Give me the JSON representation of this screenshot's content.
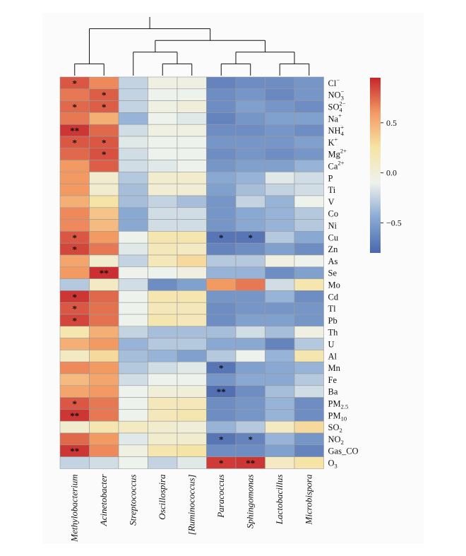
{
  "chart_data": {
    "type": "heatmap",
    "title": "",
    "columns": [
      "Methylobacterium",
      "Acinetobacter",
      "Streptococcus",
      "Oscillospira",
      "[Ruminococcus]",
      "Paracoccus",
      "Sphingomonas",
      "Lactobacillus",
      "Microbispora"
    ],
    "rows": [
      {
        "id": "Cl",
        "label": "Cl",
        "sup": "−",
        "sub": ""
      },
      {
        "id": "NO3",
        "label": "NO",
        "sub": "3",
        "sup": "−"
      },
      {
        "id": "SO4",
        "label": "SO",
        "sub": "4",
        "sup": "2−"
      },
      {
        "id": "Na",
        "label": "Na",
        "sup": "+",
        "sub": ""
      },
      {
        "id": "NH4",
        "label": "NH",
        "sub": "4",
        "sup": "+"
      },
      {
        "id": "K",
        "label": "K",
        "sup": "+",
        "sub": ""
      },
      {
        "id": "Mg",
        "label": "Mg",
        "sup": "2+",
        "sub": ""
      },
      {
        "id": "Ca",
        "label": "Ca",
        "sup": "2+",
        "sub": ""
      },
      {
        "id": "P",
        "label": "P",
        "sup": "",
        "sub": ""
      },
      {
        "id": "Ti",
        "label": "Ti",
        "sup": "",
        "sub": ""
      },
      {
        "id": "V",
        "label": "V",
        "sup": "",
        "sub": ""
      },
      {
        "id": "Co",
        "label": "Co",
        "sup": "",
        "sub": ""
      },
      {
        "id": "Ni",
        "label": "Ni",
        "sup": "",
        "sub": ""
      },
      {
        "id": "Cu",
        "label": "Cu",
        "sup": "",
        "sub": ""
      },
      {
        "id": "Zn",
        "label": "Zn",
        "sup": "",
        "sub": ""
      },
      {
        "id": "As",
        "label": "As",
        "sup": "",
        "sub": ""
      },
      {
        "id": "Se",
        "label": "Se",
        "sup": "",
        "sub": ""
      },
      {
        "id": "Mo",
        "label": "Mo",
        "sup": "",
        "sub": ""
      },
      {
        "id": "Cd",
        "label": "Cd",
        "sup": "",
        "sub": ""
      },
      {
        "id": "Tl",
        "label": "Tl",
        "sup": "",
        "sub": ""
      },
      {
        "id": "Pb",
        "label": "Pb",
        "sup": "",
        "sub": ""
      },
      {
        "id": "Th",
        "label": "Th",
        "sup": "",
        "sub": ""
      },
      {
        "id": "U",
        "label": "U",
        "sup": "",
        "sub": ""
      },
      {
        "id": "Al",
        "label": "Al",
        "sup": "",
        "sub": ""
      },
      {
        "id": "Mn",
        "label": "Mn",
        "sup": "",
        "sub": ""
      },
      {
        "id": "Fe",
        "label": "Fe",
        "sup": "",
        "sub": ""
      },
      {
        "id": "Ba",
        "label": "Ba",
        "sup": "",
        "sub": ""
      },
      {
        "id": "PM25",
        "label": "PM",
        "sub": "2.5",
        "sup": ""
      },
      {
        "id": "PM10",
        "label": "PM",
        "sub": "10",
        "sup": ""
      },
      {
        "id": "SO2",
        "label": "SO",
        "sub": "2",
        "sup": ""
      },
      {
        "id": "NO2",
        "label": "NO",
        "sub": "2",
        "sup": ""
      },
      {
        "id": "Gas_CO",
        "label": "Gas_CO",
        "sup": "",
        "sub": ""
      },
      {
        "id": "O3",
        "label": "O",
        "sub": "3",
        "sup": ""
      }
    ],
    "values": [
      [
        0.8,
        0.65,
        -0.25,
        -0.05,
        -0.05,
        -0.65,
        -0.6,
        -0.6,
        -0.55
      ],
      [
        0.7,
        0.78,
        -0.25,
        -0.1,
        -0.1,
        -0.6,
        -0.55,
        -0.62,
        -0.55
      ],
      [
        0.75,
        0.78,
        -0.25,
        -0.05,
        0.0,
        -0.6,
        -0.5,
        -0.55,
        -0.6
      ],
      [
        0.7,
        0.5,
        -0.4,
        -0.1,
        -0.15,
        -0.65,
        -0.55,
        -0.5,
        -0.5
      ],
      [
        0.9,
        0.75,
        -0.2,
        -0.05,
        -0.05,
        -0.6,
        -0.6,
        -0.55,
        -0.6
      ],
      [
        0.8,
        0.8,
        -0.15,
        -0.1,
        -0.1,
        -0.55,
        -0.55,
        -0.55,
        -0.5
      ],
      [
        0.75,
        0.82,
        -0.2,
        -0.1,
        -0.1,
        -0.6,
        -0.55,
        -0.6,
        -0.55
      ],
      [
        0.6,
        0.78,
        -0.2,
        -0.15,
        -0.1,
        -0.55,
        -0.5,
        -0.5,
        -0.4
      ],
      [
        0.6,
        0.05,
        -0.3,
        0.05,
        0.05,
        -0.45,
        -0.4,
        -0.15,
        -0.2
      ],
      [
        0.6,
        0.05,
        -0.35,
        0.02,
        0.02,
        -0.5,
        -0.35,
        -0.25,
        -0.2
      ],
      [
        0.5,
        0.25,
        -0.35,
        -0.25,
        -0.35,
        -0.55,
        -0.25,
        -0.4,
        -0.1
      ],
      [
        0.65,
        0.4,
        -0.45,
        -0.2,
        -0.2,
        -0.55,
        -0.45,
        -0.4,
        -0.3
      ],
      [
        0.65,
        0.45,
        -0.45,
        -0.2,
        -0.2,
        -0.55,
        -0.45,
        -0.4,
        -0.3
      ],
      [
        0.8,
        0.6,
        -0.1,
        0.2,
        0.2,
        -0.72,
        -0.72,
        -0.3,
        -0.45
      ],
      [
        0.85,
        0.7,
        -0.15,
        0.15,
        0.1,
        -0.65,
        -0.6,
        -0.5,
        -0.6
      ],
      [
        0.55,
        0.05,
        -0.25,
        0.15,
        0.3,
        -0.3,
        -0.3,
        -0.05,
        -0.1
      ],
      [
        0.6,
        0.92,
        -0.1,
        -0.1,
        -0.05,
        -0.4,
        -0.4,
        -0.6,
        -0.5
      ],
      [
        -0.3,
        0.1,
        -0.2,
        -0.6,
        -0.5,
        0.6,
        0.7,
        -0.2,
        0.2
      ],
      [
        0.9,
        0.75,
        -0.1,
        0.2,
        0.2,
        -0.55,
        -0.55,
        -0.4,
        -0.6
      ],
      [
        0.8,
        0.72,
        -0.1,
        0.15,
        0.15,
        -0.6,
        -0.55,
        -0.55,
        -0.55
      ],
      [
        0.85,
        0.72,
        -0.1,
        0.2,
        0.15,
        -0.6,
        -0.5,
        -0.5,
        -0.55
      ],
      [
        0.2,
        0.5,
        -0.25,
        -0.35,
        -0.35,
        -0.35,
        -0.2,
        -0.35,
        -0.05
      ],
      [
        0.5,
        0.6,
        -0.4,
        -0.3,
        -0.3,
        -0.45,
        -0.45,
        -0.65,
        -0.3
      ],
      [
        0.1,
        0.3,
        -0.35,
        -0.4,
        -0.5,
        -0.3,
        -0.1,
        -0.4,
        0.2
      ],
      [
        0.65,
        0.6,
        -0.3,
        -0.2,
        -0.15,
        -0.72,
        -0.5,
        -0.45,
        -0.4
      ],
      [
        0.45,
        0.55,
        -0.2,
        -0.1,
        -0.1,
        -0.55,
        -0.45,
        -0.45,
        -0.3
      ],
      [
        0.55,
        0.6,
        -0.1,
        0.0,
        0.0,
        -0.75,
        -0.6,
        -0.35,
        -0.2
      ],
      [
        0.8,
        0.7,
        -0.1,
        0.15,
        0.15,
        -0.6,
        -0.55,
        -0.4,
        -0.6
      ],
      [
        0.9,
        0.7,
        -0.1,
        0.15,
        0.2,
        -0.6,
        -0.55,
        -0.4,
        -0.6
      ],
      [
        0.05,
        0.2,
        0.1,
        0.05,
        0.0,
        -0.4,
        -0.3,
        0.1,
        0.3
      ],
      [
        0.75,
        0.6,
        -0.15,
        0.05,
        0.05,
        -0.72,
        -0.65,
        -0.4,
        -0.55
      ],
      [
        0.9,
        0.65,
        -0.05,
        0.2,
        0.25,
        -0.6,
        -0.6,
        -0.5,
        -0.65
      ],
      [
        -0.25,
        -0.2,
        -0.1,
        -0.25,
        -0.15,
        0.88,
        0.9,
        0.1,
        0.25
      ]
    ],
    "significance": [
      [
        "*",
        "",
        "",
        "",
        "",
        "",
        "",
        "",
        ""
      ],
      [
        "",
        "*",
        "",
        "",
        "",
        "",
        "",
        "",
        ""
      ],
      [
        "*",
        "*",
        "",
        "",
        "",
        "",
        "",
        "",
        ""
      ],
      [
        "",
        "",
        "",
        "",
        "",
        "",
        "",
        "",
        ""
      ],
      [
        "**",
        "",
        "",
        "",
        "",
        "",
        "",
        "",
        ""
      ],
      [
        "*",
        "*",
        "",
        "",
        "",
        "",
        "",
        "",
        ""
      ],
      [
        "",
        "*",
        "",
        "",
        "",
        "",
        "",
        "",
        ""
      ],
      [
        "",
        "",
        "",
        "",
        "",
        "",
        "",
        "",
        ""
      ],
      [
        "",
        "",
        "",
        "",
        "",
        "",
        "",
        "",
        ""
      ],
      [
        "",
        "",
        "",
        "",
        "",
        "",
        "",
        "",
        ""
      ],
      [
        "",
        "",
        "",
        "",
        "",
        "",
        "",
        "",
        ""
      ],
      [
        "",
        "",
        "",
        "",
        "",
        "",
        "",
        "",
        ""
      ],
      [
        "",
        "",
        "",
        "",
        "",
        "",
        "",
        "",
        ""
      ],
      [
        "*",
        "",
        "",
        "",
        "",
        "*",
        "*",
        "",
        ""
      ],
      [
        "*",
        "",
        "",
        "",
        "",
        "",
        "",
        "",
        ""
      ],
      [
        "",
        "",
        "",
        "",
        "",
        "",
        "",
        "",
        ""
      ],
      [
        "",
        "**",
        "",
        "",
        "",
        "",
        "",
        "",
        ""
      ],
      [
        "",
        "",
        "",
        "",
        "",
        "",
        "",
        "",
        ""
      ],
      [
        "*",
        "",
        "",
        "",
        "",
        "",
        "",
        "",
        ""
      ],
      [
        "*",
        "",
        "",
        "",
        "",
        "",
        "",
        "",
        ""
      ],
      [
        "*",
        "",
        "",
        "",
        "",
        "",
        "",
        "",
        ""
      ],
      [
        "",
        "",
        "",
        "",
        "",
        "",
        "",
        "",
        ""
      ],
      [
        "",
        "",
        "",
        "",
        "",
        "",
        "",
        "",
        ""
      ],
      [
        "",
        "",
        "",
        "",
        "",
        "",
        "",
        "",
        ""
      ],
      [
        "",
        "",
        "",
        "",
        "",
        "*",
        "",
        "",
        ""
      ],
      [
        "",
        "",
        "",
        "",
        "",
        "",
        "",
        "",
        ""
      ],
      [
        "",
        "",
        "",
        "",
        "",
        "**",
        "",
        "",
        ""
      ],
      [
        "*",
        "",
        "",
        "",
        "",
        "",
        "",
        "",
        ""
      ],
      [
        "**",
        "",
        "",
        "",
        "",
        "",
        "",
        "",
        ""
      ],
      [
        "",
        "",
        "",
        "",
        "",
        "",
        "",
        "",
        ""
      ],
      [
        "",
        "",
        "",
        "",
        "",
        "*",
        "*",
        "",
        ""
      ],
      [
        "**",
        "",
        "",
        "",
        "",
        "",
        "",
        "",
        ""
      ],
      [
        "",
        "",
        "",
        "",
        "",
        "*",
        "**",
        "",
        ""
      ]
    ],
    "dendrogram": "(((Methylobacterium,Acinetobacter),((Streptococcus,(Oscillospira,[Ruminococcus])),((Paracoccus,Sphingomonas),(Lactobacillus,Microbispora)))))",
    "colorbar": {
      "vmin": -0.8,
      "vmax": 0.95,
      "ticks": [
        0.5,
        0.0,
        -0.5
      ],
      "tick_labels": [
        "0.5",
        "0.0",
        "−0.5"
      ],
      "colors": [
        "#4a67ad",
        "#89a9d3",
        "#eef2ec",
        "#f6e4a6",
        "#f39a62",
        "#c6252c"
      ]
    }
  }
}
